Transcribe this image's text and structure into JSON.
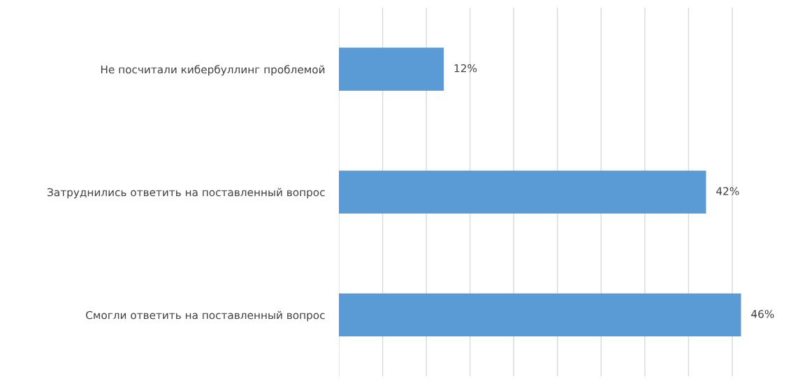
{
  "chart_data": {
    "type": "bar",
    "orientation": "horizontal",
    "categories": [
      "Не посчитали кибербуллинг проблемой",
      "Затруднились ответить на поставленный вопрос",
      "Смогли ответить на поставленный вопрос"
    ],
    "values": [
      12,
      42,
      46
    ],
    "color": "#5b9bd5",
    "value_labels": [
      "12%",
      "42%",
      "46%"
    ],
    "xticks": [
      {
        "value": 0,
        "label": null
      },
      {
        "value": 5,
        "label": null
      },
      {
        "value": 10,
        "label": null
      },
      {
        "value": 15,
        "label": null
      },
      {
        "value": 20,
        "label": null
      },
      {
        "value": 25,
        "label": null
      },
      {
        "value": 30,
        "label": null
      },
      {
        "value": 35,
        "label": null
      },
      {
        "value": 40,
        "label": null
      },
      {
        "value": 45,
        "label": null
      }
    ],
    "grid": "x",
    "tick_labels": "y",
    "legend": false
  }
}
